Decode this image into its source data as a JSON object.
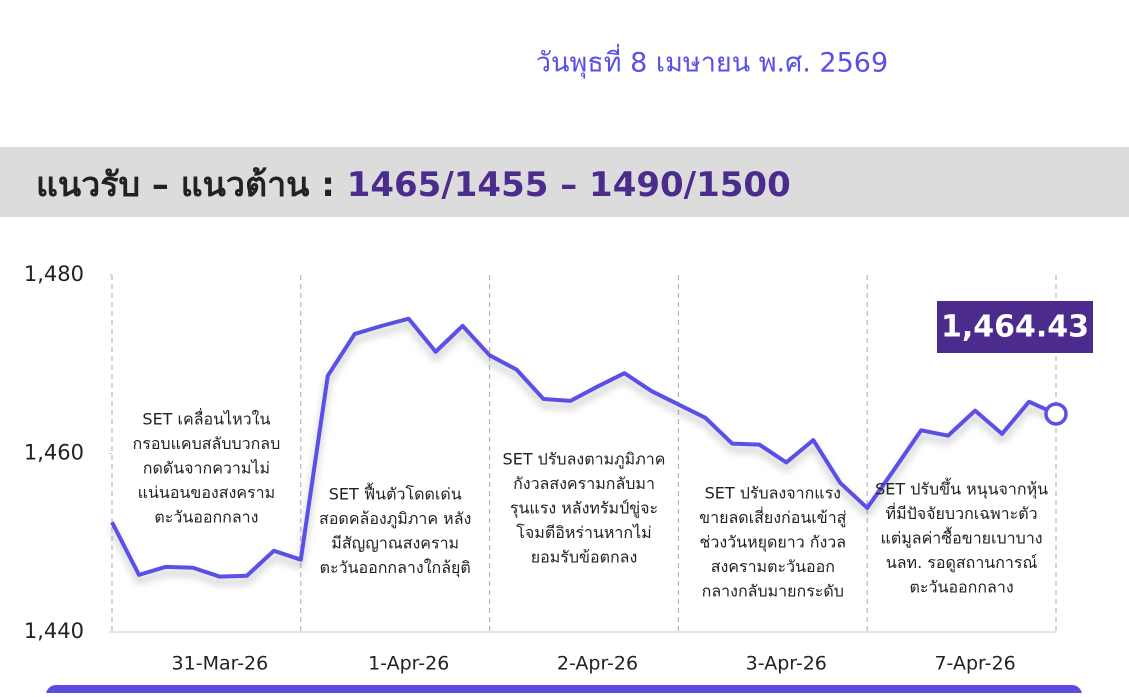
{
  "date": "วันพุธที่ 8 เมษายน พ.ศ. 2569",
  "banner": {
    "label": "แนวรับ – แนวต้าน : ",
    "levels": "1465/1455 – 1490/1500"
  },
  "chart_data": {
    "type": "line",
    "categories": [
      null,
      null,
      null,
      null,
      "31-Mar-26",
      null,
      null,
      null,
      null,
      null,
      null,
      "1-Apr-26",
      null,
      null,
      null,
      null,
      null,
      null,
      "2-Apr-26",
      null,
      null,
      null,
      null,
      null,
      null,
      "3-Apr-26",
      null,
      null,
      null,
      null,
      null,
      null,
      "7-Apr-26",
      null,
      null,
      null
    ],
    "series": [
      {
        "name": "SET",
        "color": "#5a4fe6",
        "values": [
          1452.3,
          1446.4,
          1447.3,
          1447.2,
          1446.2,
          1446.3,
          1449.1,
          1448.1,
          1468.7,
          1473.4,
          1474.3,
          1475.1,
          1471.4,
          1474.3,
          1471.0,
          1469.4,
          1466.1,
          1465.9,
          1467.5,
          1469.0,
          1467.0,
          1465.5,
          1464.0,
          1461.1,
          1461.0,
          1459.0,
          1461.5,
          1456.7,
          1453.9,
          1458.2,
          1462.6,
          1462.0,
          1464.8,
          1462.2,
          1465.8,
          1464.43
        ],
        "value_labels": {
          "35": "1,464.43"
        }
      }
    ],
    "ylim": [
      1440,
      1480
    ],
    "yticks": [
      {
        "value": 1440,
        "label": "1,440"
      },
      {
        "value": 1460,
        "label": "1,460"
      },
      {
        "value": 1480,
        "label": "1,480"
      }
    ],
    "annotations": [
      [
        "SET เคลื่อนไหวใน",
        "กรอบแคบสลับบวกลบ",
        "กดดันจากความไม่",
        "แน่นอนของสงคราม",
        "ตะวันออกกลาง"
      ],
      [
        "SET ฟื้นตัวโดดเด่น",
        "สอดคล้องภูมิภาค หลัง",
        "มีสัญญาณสงคราม",
        "ตะวันออกกลางใกล้ยุติ"
      ],
      [
        "SET ปรับลงตามภูมิภาค",
        "กังวลสงครามกลับมา",
        "รุนแรง หลังทรัมป์ขู่จะ",
        "โจมตีอิหร่านหากไม่",
        "ยอมรับข้อตกลง"
      ],
      [
        "SET ปรับลงจากแรง",
        "ขายลดเสี่ยงก่อนเข้าสู่",
        "ช่วงวันหยุดยาว กังวล",
        "สงครามตะวันออก",
        "กลางกลับมายกระดับ"
      ],
      [
        "SET ปรับขึ้น หนุนจากหุ้น",
        "ที่มีปัจจัยบวกเฉพาะตัว",
        "แต่มูลค่าซื้อขายเบาบาง",
        "นลท. รอดูสถานการณ์",
        "ตะวันออกกลาง"
      ]
    ]
  }
}
